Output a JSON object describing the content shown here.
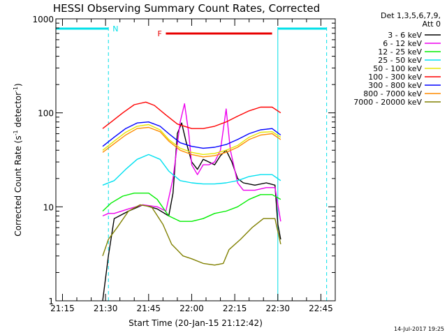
{
  "chart_data": {
    "type": "line",
    "title": "HESSI Observing Summary Count Rates, Corrected",
    "xlabel": "Start Time (20-Jan-15 21:12:42)",
    "ylabel_main": "Corrected Count Rate (s",
    "ylabel_mid": " detector",
    "ylabel_sup": "-1",
    "ylabel_end": ")",
    "x_range": [
      "21:12:42",
      "22:50:00"
    ],
    "ylim": [
      1,
      1000
    ],
    "yscale": "log",
    "x_ticks": [
      "21:15",
      "21:30",
      "21:45",
      "22:00",
      "22:15",
      "22:30",
      "22:45"
    ],
    "y_ticks": [
      {
        "value": 1,
        "label": "1"
      },
      {
        "value": 10,
        "label": "10"
      },
      {
        "value": 100,
        "label": "100"
      },
      {
        "value": 1000,
        "label": "1000"
      }
    ],
    "legend_title_1": "Det 1,3,5,6,7,9,",
    "legend_title_2": "Att 0",
    "legend_position": "right",
    "annotations": {
      "night_label": "N",
      "flare_label": "F",
      "night_segments": [
        [
          "21:12:42",
          "21:31:00"
        ],
        [
          "22:30:00",
          "22:47:00"
        ]
      ],
      "flare_segment": [
        "21:51:00",
        "22:28:00"
      ],
      "night_color": "#00e0e8",
      "flare_color": "#e80000",
      "dashed_lines": [
        "21:31:00",
        "22:47:00"
      ],
      "solid_lines": [
        "21:12:42",
        "22:30:00"
      ]
    },
    "series": [
      {
        "name": "3 - 6 keV",
        "color": "#000000",
        "points": [
          [
            "21:29:00",
            1.0
          ],
          [
            "21:31:00",
            3.0
          ],
          [
            "21:33:00",
            7.5
          ],
          [
            "21:38:00",
            9.0
          ],
          [
            "21:43:00",
            10.5
          ],
          [
            "21:48:00",
            9.5
          ],
          [
            "21:52:00",
            8.0
          ],
          [
            "21:53:30",
            14.0
          ],
          [
            "21:55:00",
            60.0
          ],
          [
            "21:56:30",
            78.0
          ],
          [
            "21:58:00",
            50.0
          ],
          [
            "22:00:00",
            30.0
          ],
          [
            "22:02:00",
            25.0
          ],
          [
            "22:04:00",
            32.0
          ],
          [
            "22:06:00",
            30.0
          ],
          [
            "22:08:00",
            28.0
          ],
          [
            "22:10:00",
            35.0
          ],
          [
            "22:12:00",
            40.0
          ],
          [
            "22:14:00",
            30.0
          ],
          [
            "22:16:00",
            20.0
          ],
          [
            "22:18:00",
            18.0
          ],
          [
            "22:22:00",
            17.0
          ],
          [
            "22:26:00",
            18.0
          ],
          [
            "22:29:00",
            17.0
          ],
          [
            "22:30:00",
            6.5
          ],
          [
            "22:31:00",
            4.5
          ]
        ]
      },
      {
        "name": "6 - 12 keV",
        "color": "#ee00ee",
        "points": [
          [
            "21:29:00",
            8.0
          ],
          [
            "21:31:00",
            8.5
          ],
          [
            "21:33:00",
            8.5
          ],
          [
            "21:38:00",
            9.5
          ],
          [
            "21:43:00",
            10.5
          ],
          [
            "21:48:00",
            10.0
          ],
          [
            "21:51:00",
            9.0
          ],
          [
            "21:53:30",
            20.0
          ],
          [
            "21:56:00",
            80.0
          ],
          [
            "21:57:30",
            125.0
          ],
          [
            "21:59:00",
            60.0
          ],
          [
            "22:00:00",
            28.0
          ],
          [
            "22:02:00",
            22.0
          ],
          [
            "22:04:00",
            28.0
          ],
          [
            "22:06:00",
            28.0
          ],
          [
            "22:08:00",
            30.0
          ],
          [
            "22:10:00",
            40.0
          ],
          [
            "22:12:00",
            110.0
          ],
          [
            "22:13:30",
            40.0
          ],
          [
            "22:16:00",
            18.0
          ],
          [
            "22:18:00",
            15.0
          ],
          [
            "22:22:00",
            15.0
          ],
          [
            "22:26:00",
            16.0
          ],
          [
            "22:29:00",
            16.0
          ],
          [
            "22:31:00",
            7.0
          ]
        ]
      },
      {
        "name": "12 - 25 keV",
        "color": "#00ee00",
        "points": [
          [
            "21:29:00",
            9.0
          ],
          [
            "21:32:00",
            11.0
          ],
          [
            "21:36:00",
            13.0
          ],
          [
            "21:40:00",
            14.0
          ],
          [
            "21:45:00",
            14.0
          ],
          [
            "21:48:00",
            12.0
          ],
          [
            "21:52:00",
            8.0
          ],
          [
            "21:56:00",
            7.0
          ],
          [
            "22:00:00",
            7.0
          ],
          [
            "22:04:00",
            7.5
          ],
          [
            "22:08:00",
            8.5
          ],
          [
            "22:12:00",
            9.0
          ],
          [
            "22:16:00",
            10.0
          ],
          [
            "22:20:00",
            12.0
          ],
          [
            "22:24:00",
            13.5
          ],
          [
            "22:28:00",
            13.5
          ],
          [
            "22:31:00",
            12.0
          ]
        ]
      },
      {
        "name": "25 - 50 keV",
        "color": "#00e0f0",
        "points": [
          [
            "21:29:00",
            17.0
          ],
          [
            "21:33:00",
            19.0
          ],
          [
            "21:37:00",
            25.0
          ],
          [
            "21:41:00",
            32.0
          ],
          [
            "21:45:00",
            36.0
          ],
          [
            "21:49:00",
            32.0
          ],
          [
            "21:52:00",
            24.0
          ],
          [
            "21:56:00",
            19.0
          ],
          [
            "22:00:00",
            18.0
          ],
          [
            "22:04:00",
            17.5
          ],
          [
            "22:08:00",
            17.5
          ],
          [
            "22:12:00",
            18.0
          ],
          [
            "22:16:00",
            19.0
          ],
          [
            "22:20:00",
            21.0
          ],
          [
            "22:24:00",
            22.0
          ],
          [
            "22:28:00",
            22.0
          ],
          [
            "22:31:00",
            19.0
          ]
        ]
      },
      {
        "name": "50 - 100 keV",
        "color": "#e6e600",
        "points": [
          [
            "21:29:00",
            40.0
          ],
          [
            "21:33:00",
            50.0
          ],
          [
            "21:37:00",
            62.0
          ],
          [
            "21:41:00",
            72.0
          ],
          [
            "21:45:00",
            75.0
          ],
          [
            "21:49:00",
            66.0
          ],
          [
            "21:52:00",
            52.0
          ],
          [
            "21:56:00",
            42.0
          ],
          [
            "22:00:00",
            38.0
          ],
          [
            "22:04:00",
            36.0
          ],
          [
            "22:08:00",
            37.0
          ],
          [
            "22:12:00",
            40.0
          ],
          [
            "22:16:00",
            45.0
          ],
          [
            "22:20:00",
            55.0
          ],
          [
            "22:24:00",
            62.0
          ],
          [
            "22:28:00",
            63.0
          ],
          [
            "22:31:00",
            55.0
          ]
        ]
      },
      {
        "name": "100 - 300 keV",
        "color": "#ff0000",
        "points": [
          [
            "21:29:00",
            68.0
          ],
          [
            "21:32:00",
            80.0
          ],
          [
            "21:36:00",
            100.0
          ],
          [
            "21:40:00",
            122.0
          ],
          [
            "21:44:00",
            130.0
          ],
          [
            "21:47:00",
            120.0
          ],
          [
            "21:51:00",
            95.0
          ],
          [
            "21:55:00",
            76.0
          ],
          [
            "22:00:00",
            68.0
          ],
          [
            "22:04:00",
            68.0
          ],
          [
            "22:08:00",
            72.0
          ],
          [
            "22:12:00",
            80.0
          ],
          [
            "22:16:00",
            92.0
          ],
          [
            "22:20:00",
            105.0
          ],
          [
            "22:24:00",
            115.0
          ],
          [
            "22:28:00",
            115.0
          ],
          [
            "22:31:00",
            100.0
          ]
        ]
      },
      {
        "name": "300 - 800 keV",
        "color": "#0000ff",
        "points": [
          [
            "21:29:00",
            44.0
          ],
          [
            "21:33:00",
            55.0
          ],
          [
            "21:37:00",
            68.0
          ],
          [
            "21:41:00",
            78.0
          ],
          [
            "21:45:00",
            80.0
          ],
          [
            "21:49:00",
            72.0
          ],
          [
            "21:52:00",
            60.0
          ],
          [
            "21:56:00",
            48.0
          ],
          [
            "22:00:00",
            44.0
          ],
          [
            "22:04:00",
            42.0
          ],
          [
            "22:08:00",
            43.0
          ],
          [
            "22:12:00",
            46.0
          ],
          [
            "22:16:00",
            52.0
          ],
          [
            "22:20:00",
            60.0
          ],
          [
            "22:24:00",
            66.0
          ],
          [
            "22:28:00",
            68.0
          ],
          [
            "22:31:00",
            58.0
          ]
        ]
      },
      {
        "name": "800 - 7000 keV",
        "color": "#ff8c00",
        "points": [
          [
            "21:29:00",
            38.0
          ],
          [
            "21:33:00",
            47.0
          ],
          [
            "21:37:00",
            58.0
          ],
          [
            "21:41:00",
            68.0
          ],
          [
            "21:45:00",
            70.0
          ],
          [
            "21:49:00",
            63.0
          ],
          [
            "21:52:00",
            50.0
          ],
          [
            "21:56:00",
            40.0
          ],
          [
            "22:00:00",
            36.0
          ],
          [
            "22:04:00",
            34.0
          ],
          [
            "22:08:00",
            35.0
          ],
          [
            "22:12:00",
            38.0
          ],
          [
            "22:16:00",
            43.0
          ],
          [
            "22:20:00",
            52.0
          ],
          [
            "22:24:00",
            58.0
          ],
          [
            "22:28:00",
            60.0
          ],
          [
            "22:31:00",
            52.0
          ]
        ]
      },
      {
        "name": "7000 - 20000 keV",
        "color": "#808000",
        "points": [
          [
            "21:29:00",
            3.0
          ],
          [
            "21:31:00",
            4.5
          ],
          [
            "21:34:00",
            6.0
          ],
          [
            "21:38:00",
            9.0
          ],
          [
            "21:42:00",
            10.5
          ],
          [
            "21:46:00",
            10.0
          ],
          [
            "21:50:00",
            6.5
          ],
          [
            "21:53:00",
            4.0
          ],
          [
            "21:57:00",
            3.0
          ],
          [
            "22:00:00",
            2.8
          ],
          [
            "22:04:00",
            2.5
          ],
          [
            "22:08:00",
            2.4
          ],
          [
            "22:11:00",
            2.5
          ],
          [
            "22:13:00",
            3.5
          ],
          [
            "22:17:00",
            4.5
          ],
          [
            "22:21:00",
            6.0
          ],
          [
            "22:25:00",
            7.5
          ],
          [
            "22:29:00",
            7.5
          ],
          [
            "22:31:00",
            4.0
          ]
        ]
      }
    ]
  },
  "footer": {
    "date_stamp": "14-Jul-2017 19:25"
  }
}
